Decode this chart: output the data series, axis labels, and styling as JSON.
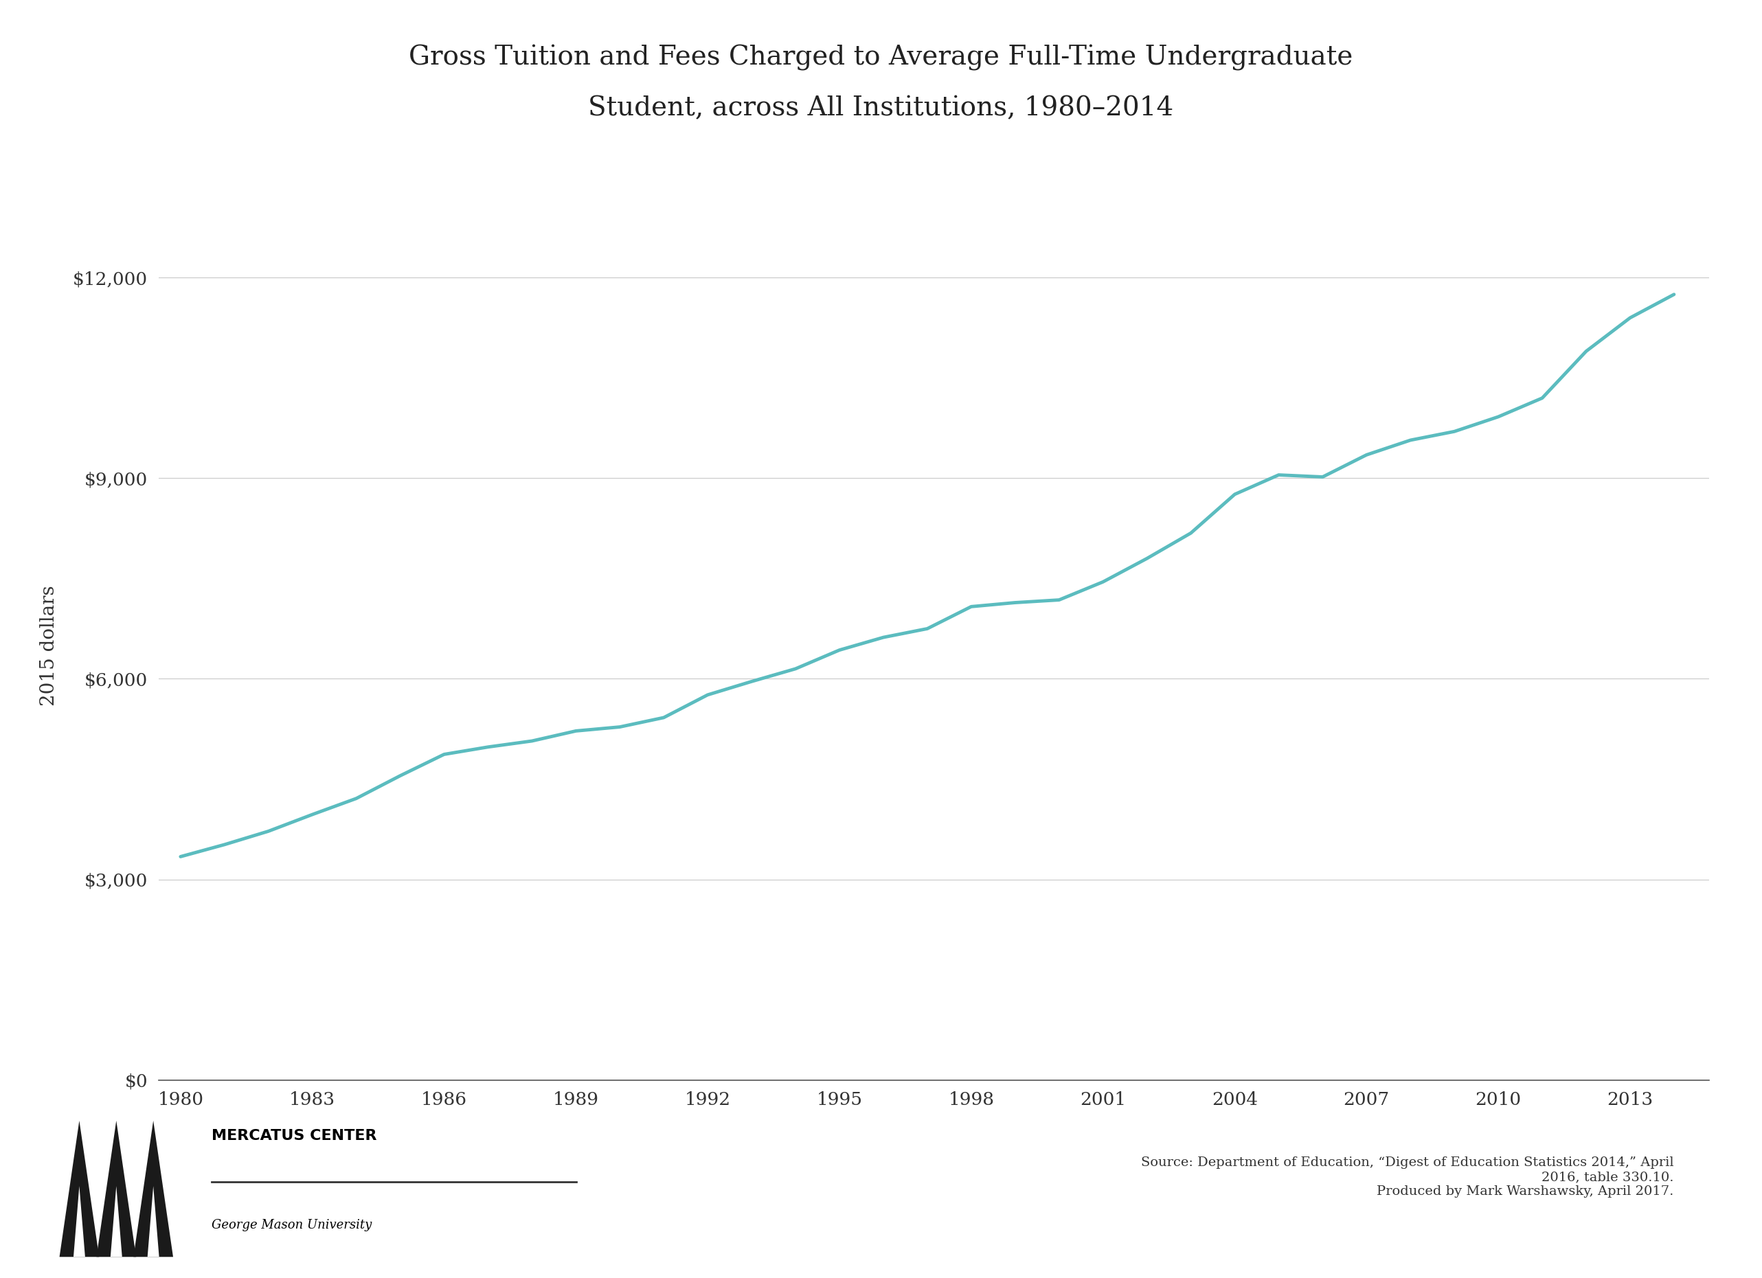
{
  "title_line1": "Gross Tuition and Fees Charged to Average Full-Time Undergraduate",
  "title_line2": "Student, across All Institutions, 1980–2014",
  "ylabel": "2015 dollars",
  "background_color": "#ffffff",
  "line_color": "#5bbcbf",
  "line_width": 3.5,
  "grid_color": "#cccccc",
  "axis_color": "#555555",
  "tick_color": "#333333",
  "source_text": "Source: Department of Education, “Digest of Education Statistics 2014,” April\n2016, table 330.10.\nProduced by Mark Warshawsky, April 2017.",
  "years": [
    1980,
    1981,
    1982,
    1983,
    1984,
    1985,
    1986,
    1987,
    1988,
    1989,
    1990,
    1991,
    1992,
    1993,
    1994,
    1995,
    1996,
    1997,
    1998,
    1999,
    2000,
    2001,
    2002,
    2003,
    2004,
    2005,
    2006,
    2007,
    2008,
    2009,
    2010,
    2011,
    2012,
    2013,
    2014
  ],
  "values": [
    3340,
    3520,
    3720,
    3970,
    4210,
    4550,
    4870,
    4980,
    5070,
    5220,
    5280,
    5420,
    5760,
    5960,
    6150,
    6430,
    6620,
    6750,
    7080,
    7140,
    7180,
    7450,
    7800,
    8180,
    8760,
    9050,
    9020,
    9350,
    9570,
    9700,
    9920,
    10200,
    10900,
    11400,
    11750
  ],
  "ylim": [
    0,
    13000
  ],
  "yticks": [
    0,
    3000,
    6000,
    9000,
    12000
  ],
  "ytick_labels": [
    "$0",
    "$3,000",
    "$6,000",
    "$9,000",
    "$12,000"
  ],
  "xtick_years": [
    1980,
    1983,
    1986,
    1989,
    1992,
    1995,
    1998,
    2001,
    2004,
    2007,
    2010,
    2013
  ],
  "title_fontsize": 28,
  "label_fontsize": 20,
  "tick_fontsize": 19,
  "source_fontsize": 14
}
